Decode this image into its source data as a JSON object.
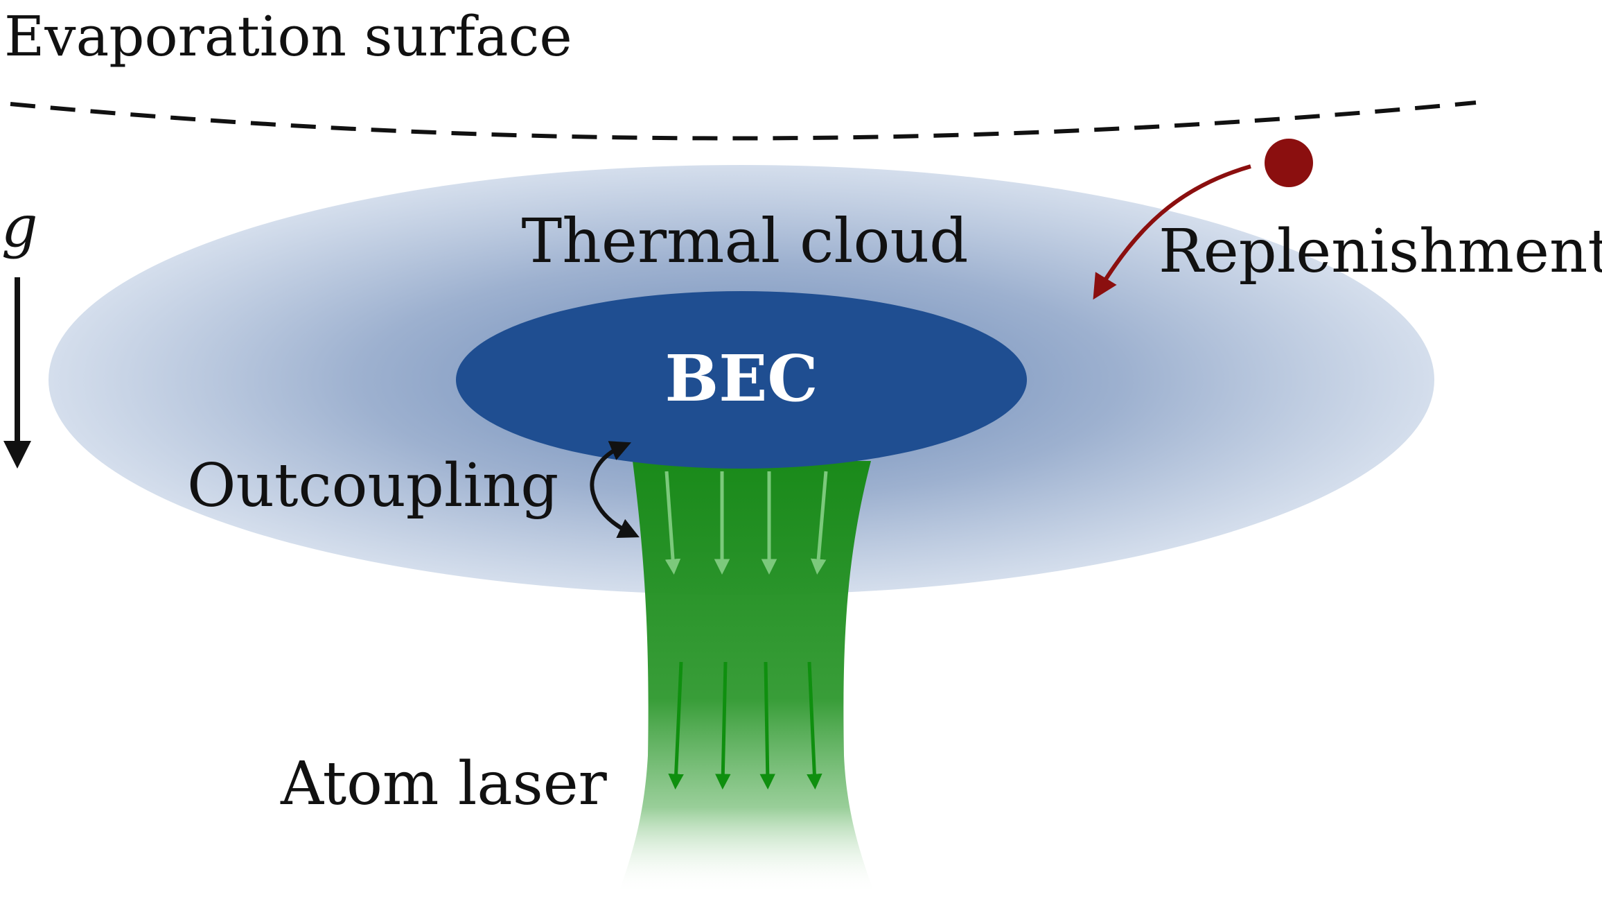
{
  "labels": {
    "evaporation_surface": "Evaporation surface",
    "gravity": "g",
    "thermal_cloud": "Thermal cloud",
    "bec": "BEC",
    "replenishment": "Replenishment",
    "outcoupling": "Outcoupling",
    "atom_laser": "Atom laser"
  },
  "colors": {
    "thermal_cloud": "#8fa6c8",
    "bec": "#1f4e91",
    "atom_laser": "#2a9a2a",
    "replenishment": "#8b0f0f",
    "text": "#111111",
    "evaporation_surface": "#111111"
  },
  "icons": {
    "gravity_arrow": "down-arrow",
    "replenishment_atom": "filled-circle",
    "replenishment_arrow": "curved-arrow",
    "outcoupling_arrow": "double-headed-curved-arrow",
    "flow_arrows": "down-arrows"
  }
}
